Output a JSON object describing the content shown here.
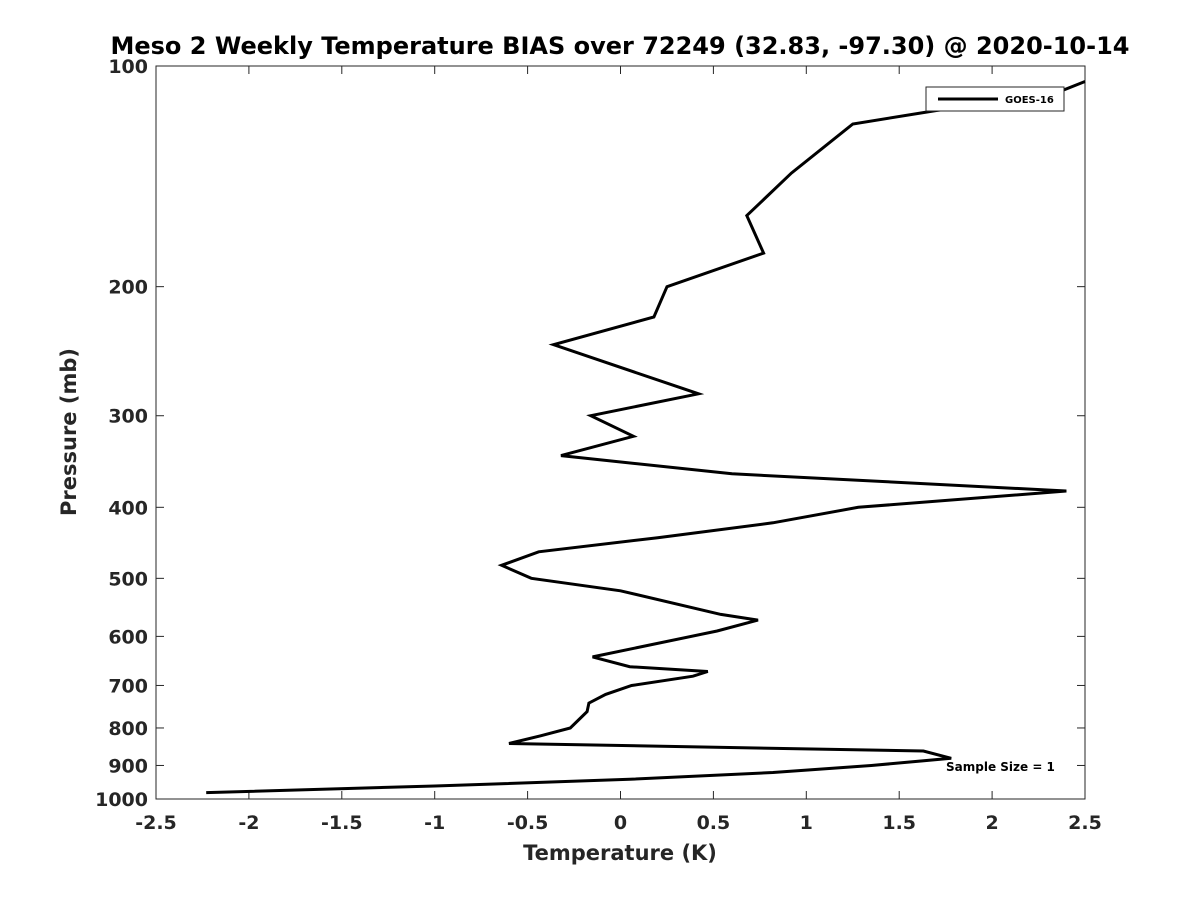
{
  "chart_data": {
    "type": "line",
    "title": "Meso 2 Weekly Temperature BIAS over 72249 (32.83, -97.30) @ 2020-10-14",
    "xlabel": "Temperature (K)",
    "ylabel": "Pressure (mb)",
    "xlim": [
      -2.5,
      2.5
    ],
    "ylim": [
      100,
      1000
    ],
    "y_scale": "log",
    "y_reversed": true,
    "x_ticks": [
      "-2.5",
      "-2",
      "-1.5",
      "-1",
      "-0.5",
      "0",
      "0.5",
      "1",
      "1.5",
      "2",
      "2.5"
    ],
    "y_ticks": [
      "100",
      "200",
      "300",
      "400",
      "500",
      "600",
      "700",
      "800",
      "900",
      "1000"
    ],
    "legend": {
      "position": "top-right"
    },
    "grid": false,
    "annotation": "Sample Size = 1",
    "series": [
      {
        "name": "GOES-16",
        "color": "#000000",
        "points": [
          [
            2.5,
            105
          ],
          [
            2.3,
            110
          ],
          [
            1.7,
            115
          ],
          [
            1.25,
            120
          ],
          [
            0.92,
            140
          ],
          [
            0.68,
            160
          ],
          [
            0.77,
            180
          ],
          [
            0.25,
            200
          ],
          [
            0.18,
            220
          ],
          [
            -0.36,
            240
          ],
          [
            0.42,
            280
          ],
          [
            -0.16,
            300
          ],
          [
            0.07,
            320
          ],
          [
            -0.32,
            340
          ],
          [
            0.6,
            360
          ],
          [
            2.4,
            380
          ],
          [
            1.28,
            400
          ],
          [
            0.82,
            420
          ],
          [
            0.2,
            440
          ],
          [
            -0.44,
            460
          ],
          [
            -0.64,
            480
          ],
          [
            -0.48,
            500
          ],
          [
            0.0,
            520
          ],
          [
            0.54,
            560
          ],
          [
            0.74,
            570
          ],
          [
            0.52,
            590
          ],
          [
            -0.15,
            640
          ],
          [
            0.05,
            660
          ],
          [
            0.47,
            670
          ],
          [
            0.39,
            680
          ],
          [
            0.06,
            700
          ],
          [
            -0.08,
            720
          ],
          [
            -0.17,
            740
          ],
          [
            -0.18,
            760
          ],
          [
            -0.27,
            800
          ],
          [
            -0.43,
            820
          ],
          [
            -0.6,
            840
          ],
          [
            1.63,
            860
          ],
          [
            1.78,
            880
          ],
          [
            1.35,
            900
          ],
          [
            0.82,
            920
          ],
          [
            0.05,
            940
          ],
          [
            -1.0,
            960
          ],
          [
            -2.23,
            980
          ]
        ]
      }
    ]
  }
}
